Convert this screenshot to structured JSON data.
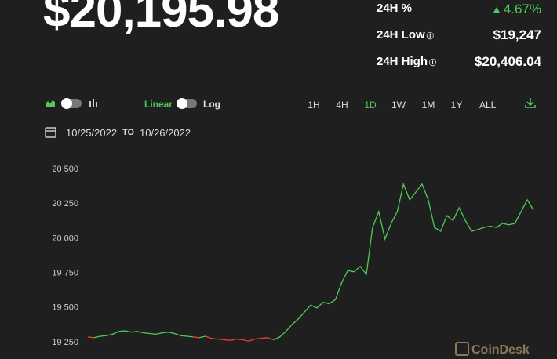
{
  "header": {
    "price": "$20,195.98",
    "stats": [
      {
        "label": "24H %",
        "value": "4.67%"
      },
      {
        "label": "24H Low",
        "value": "$19,247"
      },
      {
        "label": "24H High",
        "value": "$20,406.04"
      }
    ]
  },
  "controls": {
    "scale": [
      "Linear",
      "Log"
    ],
    "ranges": [
      "1H",
      "4H",
      "1D",
      "1W",
      "1M",
      "1Y",
      "ALL"
    ],
    "active_range": "1D",
    "date_from": "10/25/2022",
    "date_to": "10/26/2022",
    "date_sep": "TO"
  },
  "watermark": "CoinDesk",
  "chart_data": {
    "type": "line",
    "color": "#4fc95a",
    "down_color": "#e8402f",
    "values": [
      19290,
      19285,
      19295,
      19300,
      19310,
      19330,
      19335,
      19325,
      19330,
      19320,
      19315,
      19310,
      19320,
      19325,
      19315,
      19300,
      19295,
      19290,
      19285,
      19295,
      19280,
      19275,
      19270,
      19265,
      19275,
      19270,
      19260,
      19275,
      19280,
      19285,
      19270,
      19290,
      19330,
      19380,
      19420,
      19470,
      19520,
      19500,
      19540,
      19530,
      19560,
      19680,
      19770,
      19760,
      19800,
      19742,
      20081,
      20195,
      19997,
      20110,
      20195,
      20393,
      20280,
      20336,
      20393,
      20280,
      20081,
      20053,
      20166,
      20130,
      20223,
      20130,
      20053,
      20065,
      20081,
      20090,
      20081,
      20110,
      20100,
      20110,
      20195,
      20280,
      20206
    ],
    "ylim": [
      19190,
      20560
    ],
    "yticks": [
      {
        "value": 19250,
        "label": "19 250"
      },
      {
        "value": 19500,
        "label": "19 500"
      },
      {
        "value": 19750,
        "label": "19 750"
      },
      {
        "value": 20000,
        "label": "20 000"
      },
      {
        "value": 20250,
        "label": "20 250"
      },
      {
        "value": 20500,
        "label": "20 500"
      }
    ],
    "grid": false
  }
}
